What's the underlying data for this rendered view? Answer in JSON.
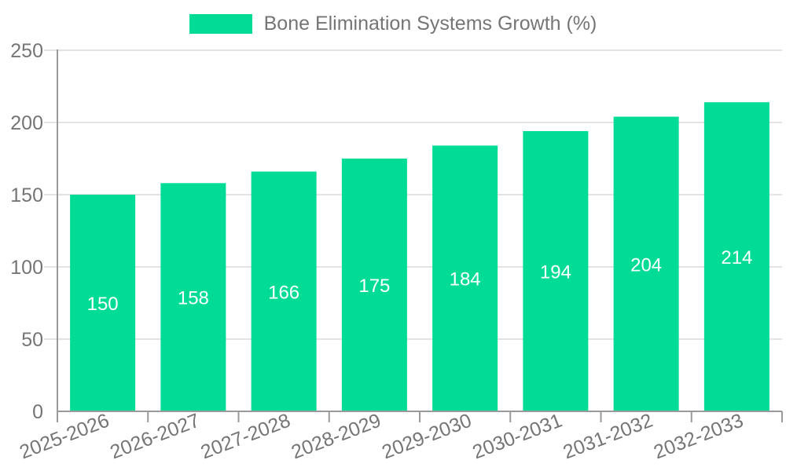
{
  "legend": {
    "label": "Bone Elimination Systems Growth (%)"
  },
  "chart_data": {
    "type": "bar",
    "title": "",
    "xlabel": "",
    "ylabel": "",
    "series_name": "Bone Elimination Systems Growth (%)",
    "categories": [
      "2025-2026",
      "2026-2027",
      "2027-2028",
      "2028-2029",
      "2029-2030",
      "2030-2031",
      "2031-2032",
      "2032-2033"
    ],
    "values": [
      150,
      158,
      166,
      175,
      184,
      194,
      204,
      214
    ],
    "ylim": [
      0,
      250
    ],
    "yticks": [
      0,
      50,
      100,
      150,
      200,
      250
    ],
    "grid": true,
    "legend_position": "top",
    "x_label_rotation": -21,
    "bar_color": "#00DC95",
    "value_label_color": "#ffffff",
    "axis_text_color": "#757575",
    "grid_color": "#e3e3e3",
    "axis_line_color": "#9a9a9a"
  }
}
